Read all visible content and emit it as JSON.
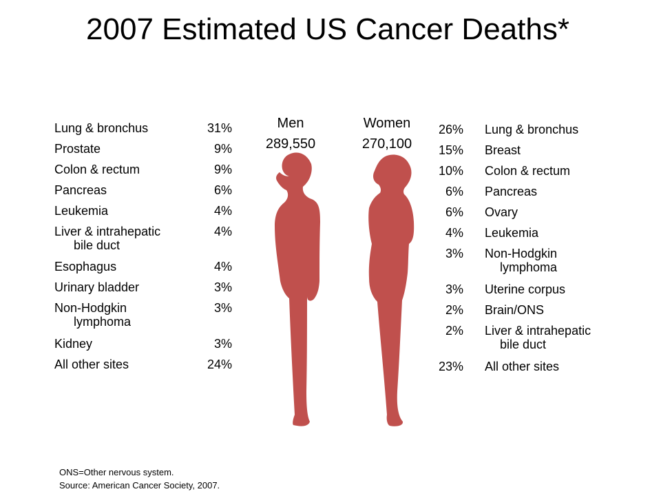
{
  "title": "2007 Estimated US Cancer Deaths*",
  "colors": {
    "silhouette": "#c0504d",
    "text": "#000000",
    "background": "#ffffff"
  },
  "men": {
    "label": "Men",
    "total": "289,550",
    "items": [
      {
        "label": "Lung & bronchus",
        "pct": "31%"
      },
      {
        "label": "Prostate",
        "pct": "9%"
      },
      {
        "label": "Colon & rectum",
        "pct": "9%"
      },
      {
        "label": "Pancreas",
        "pct": "6%"
      },
      {
        "label": "Leukemia",
        "pct": "4%"
      },
      {
        "label": "Liver & intrahepatic",
        "cont": "bile duct",
        "pct": "4%"
      },
      {
        "label": "Esophagus",
        "pct": "4%"
      },
      {
        "label": "Urinary bladder",
        "pct": "3%"
      },
      {
        "label": "Non-Hodgkin",
        "cont": "lymphoma",
        "pct": "3%"
      },
      {
        "label": "Kidney",
        "pct": "3%"
      },
      {
        "label": "All other sites",
        "pct": "24%"
      }
    ]
  },
  "women": {
    "label": "Women",
    "total": "270,100",
    "items": [
      {
        "label": "Lung & bronchus",
        "pct": "26%"
      },
      {
        "label": "Breast",
        "pct": "15%"
      },
      {
        "label": "Colon & rectum",
        "pct": "10%"
      },
      {
        "label": "Pancreas",
        "pct": "6%"
      },
      {
        "label": "Ovary",
        "pct": "6%"
      },
      {
        "label": "Leukemia",
        "pct": "4%"
      },
      {
        "label": "Non-Hodgkin",
        "cont": "lymphoma",
        "pct": "3%"
      },
      {
        "label": "Uterine corpus",
        "pct": "3%"
      },
      {
        "label": "Brain/ONS",
        "pct": "2%"
      },
      {
        "label": "Liver & intrahepatic",
        "cont": "bile duct",
        "pct": "2%"
      },
      {
        "label": "All other sites",
        "pct": "23%"
      }
    ]
  },
  "footnote": {
    "line1": "ONS=Other nervous system.",
    "line2": "Source: American Cancer Society, 2007."
  }
}
